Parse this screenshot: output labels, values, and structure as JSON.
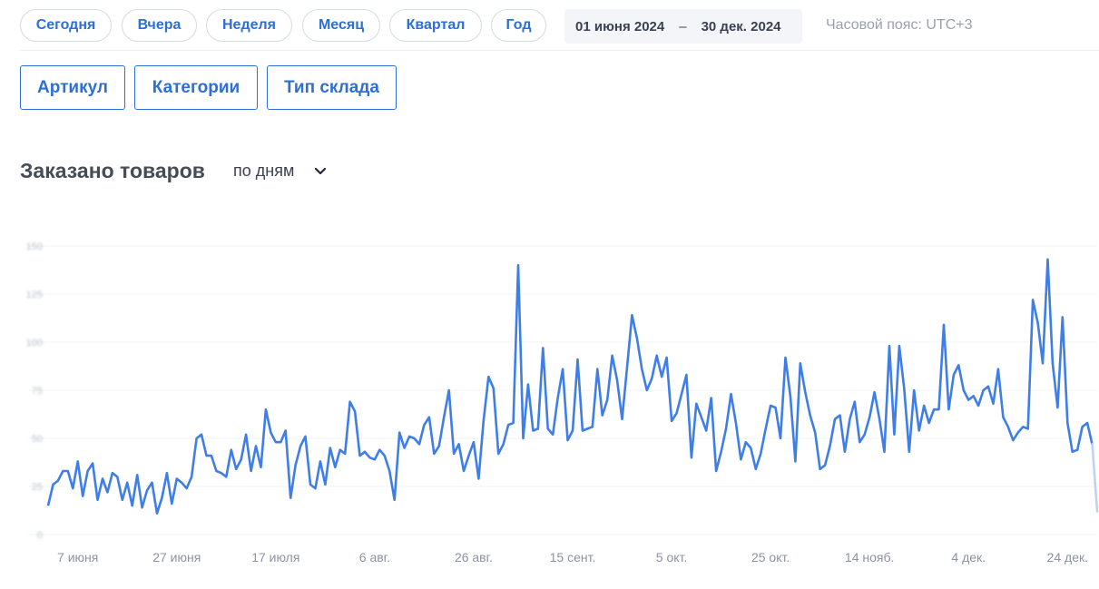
{
  "periods": [
    "Сегодня",
    "Вчера",
    "Неделя",
    "Месяц",
    "Квартал",
    "Год"
  ],
  "date_range": {
    "from": "01 июня 2024",
    "separator": "–",
    "to": "30 дек. 2024"
  },
  "timezone": "Часовой пояс: UTC+3",
  "filters": [
    "Артикул",
    "Категории",
    "Тип склада"
  ],
  "chart_title": "Заказано товаров",
  "grouping": {
    "selected": "по дням",
    "icon": "chevron-down-icon"
  },
  "colors": {
    "accent": "#2e6fd6",
    "line": "#3f7ee6",
    "line_fade": "#bcd3f5"
  },
  "chart_data": {
    "type": "line",
    "x_start": "2024-06-01",
    "x_end": "2024-12-30",
    "x_tick_labels": [
      "7 июня",
      "27 июня",
      "17 июля",
      "6 авг.",
      "26 авг.",
      "15 сент.",
      "5 окт.",
      "25 окт.",
      "14 нояб.",
      "4 дек.",
      "24 дек."
    ],
    "x_tick_dates": [
      "2024-06-07",
      "2024-06-27",
      "2024-07-17",
      "2024-08-06",
      "2024-08-26",
      "2024-09-15",
      "2024-10-05",
      "2024-10-25",
      "2024-11-14",
      "2024-12-04",
      "2024-12-24"
    ],
    "y_ticks": [
      0,
      25,
      50,
      75,
      100,
      125,
      150
    ],
    "ylim": [
      0,
      150
    ],
    "grid": true,
    "last_point_partial": true,
    "series": [
      {
        "values": [
          15,
          26,
          28,
          33,
          33,
          24,
          38,
          20,
          33,
          37,
          18,
          29,
          22,
          32,
          30,
          18,
          27,
          15,
          31,
          14,
          23,
          27,
          11,
          19,
          32,
          16,
          29,
          27,
          24,
          30,
          50,
          52,
          41,
          41,
          33,
          32,
          30,
          44,
          34,
          39,
          52,
          33,
          46,
          35,
          65,
          53,
          48,
          48,
          54,
          19,
          36,
          46,
          51,
          26,
          24,
          38,
          26,
          45,
          35,
          44,
          42,
          69,
          64,
          41,
          43,
          40,
          39,
          44,
          41,
          33,
          18,
          53,
          45,
          51,
          50,
          47,
          57,
          61,
          42,
          46,
          61,
          75,
          42,
          47,
          33,
          41,
          48,
          29,
          59,
          82,
          76,
          42,
          47,
          57,
          58,
          140,
          50,
          78,
          54,
          55,
          97,
          55,
          52,
          71,
          86,
          49,
          54,
          91,
          54,
          55,
          56,
          86,
          62,
          70,
          93,
          80,
          60,
          87,
          114,
          102,
          86,
          75,
          81,
          93,
          82,
          92,
          59,
          63,
          73,
          83,
          40,
          68,
          61,
          54,
          71,
          33,
          43,
          55,
          73,
          58,
          39,
          48,
          45,
          34,
          42,
          55,
          67,
          66,
          50,
          92,
          72,
          38,
          89,
          74,
          62,
          53,
          34,
          36,
          46,
          60,
          62,
          43,
          60,
          69,
          48,
          52,
          61,
          74,
          60,
          43,
          98,
          52,
          98,
          76,
          43,
          75,
          54,
          67,
          58,
          65,
          65,
          109,
          65,
          83,
          88,
          75,
          70,
          72,
          67,
          75,
          77,
          68,
          86,
          61,
          56,
          49,
          53,
          56,
          55,
          122,
          110,
          89,
          143,
          89,
          66,
          113,
          58,
          43,
          44,
          56,
          58,
          47,
          12
        ]
      }
    ]
  }
}
